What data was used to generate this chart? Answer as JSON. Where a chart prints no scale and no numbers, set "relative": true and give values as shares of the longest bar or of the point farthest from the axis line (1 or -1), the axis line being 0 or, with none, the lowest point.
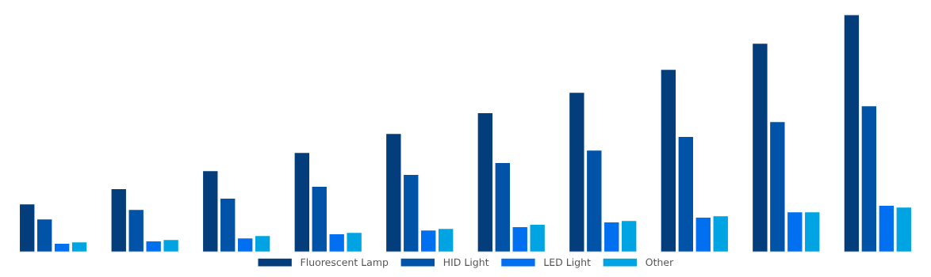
{
  "chart_data": {
    "type": "bar",
    "relative": true,
    "categories": [
      null,
      null,
      null,
      null,
      null,
      null,
      null,
      null,
      null,
      null
    ],
    "series": [
      {
        "name": "Fluorescent Lamp",
        "color": "#043d7b",
        "values": [
          0.203,
          0.267,
          0.343,
          0.42,
          0.5,
          0.587,
          0.673,
          0.77,
          0.88,
          1
        ]
      },
      {
        "name": "HID Light",
        "color": "#0053a6",
        "values": [
          0.14,
          0.18,
          0.227,
          0.277,
          0.327,
          0.377,
          0.43,
          0.487,
          0.55,
          0.617
        ]
      },
      {
        "name": "LED Light",
        "color": "#006ff0",
        "values": [
          0.037,
          0.047,
          0.06,
          0.077,
          0.093,
          0.107,
          0.127,
          0.147,
          0.17,
          0.197
        ]
      },
      {
        "name": "Other",
        "color": "#00a4e2",
        "values": [
          0.043,
          0.053,
          0.07,
          0.083,
          0.1,
          0.117,
          0.133,
          0.153,
          0.17,
          0.19
        ]
      }
    ],
    "legend": "bottom",
    "grid": false
  }
}
